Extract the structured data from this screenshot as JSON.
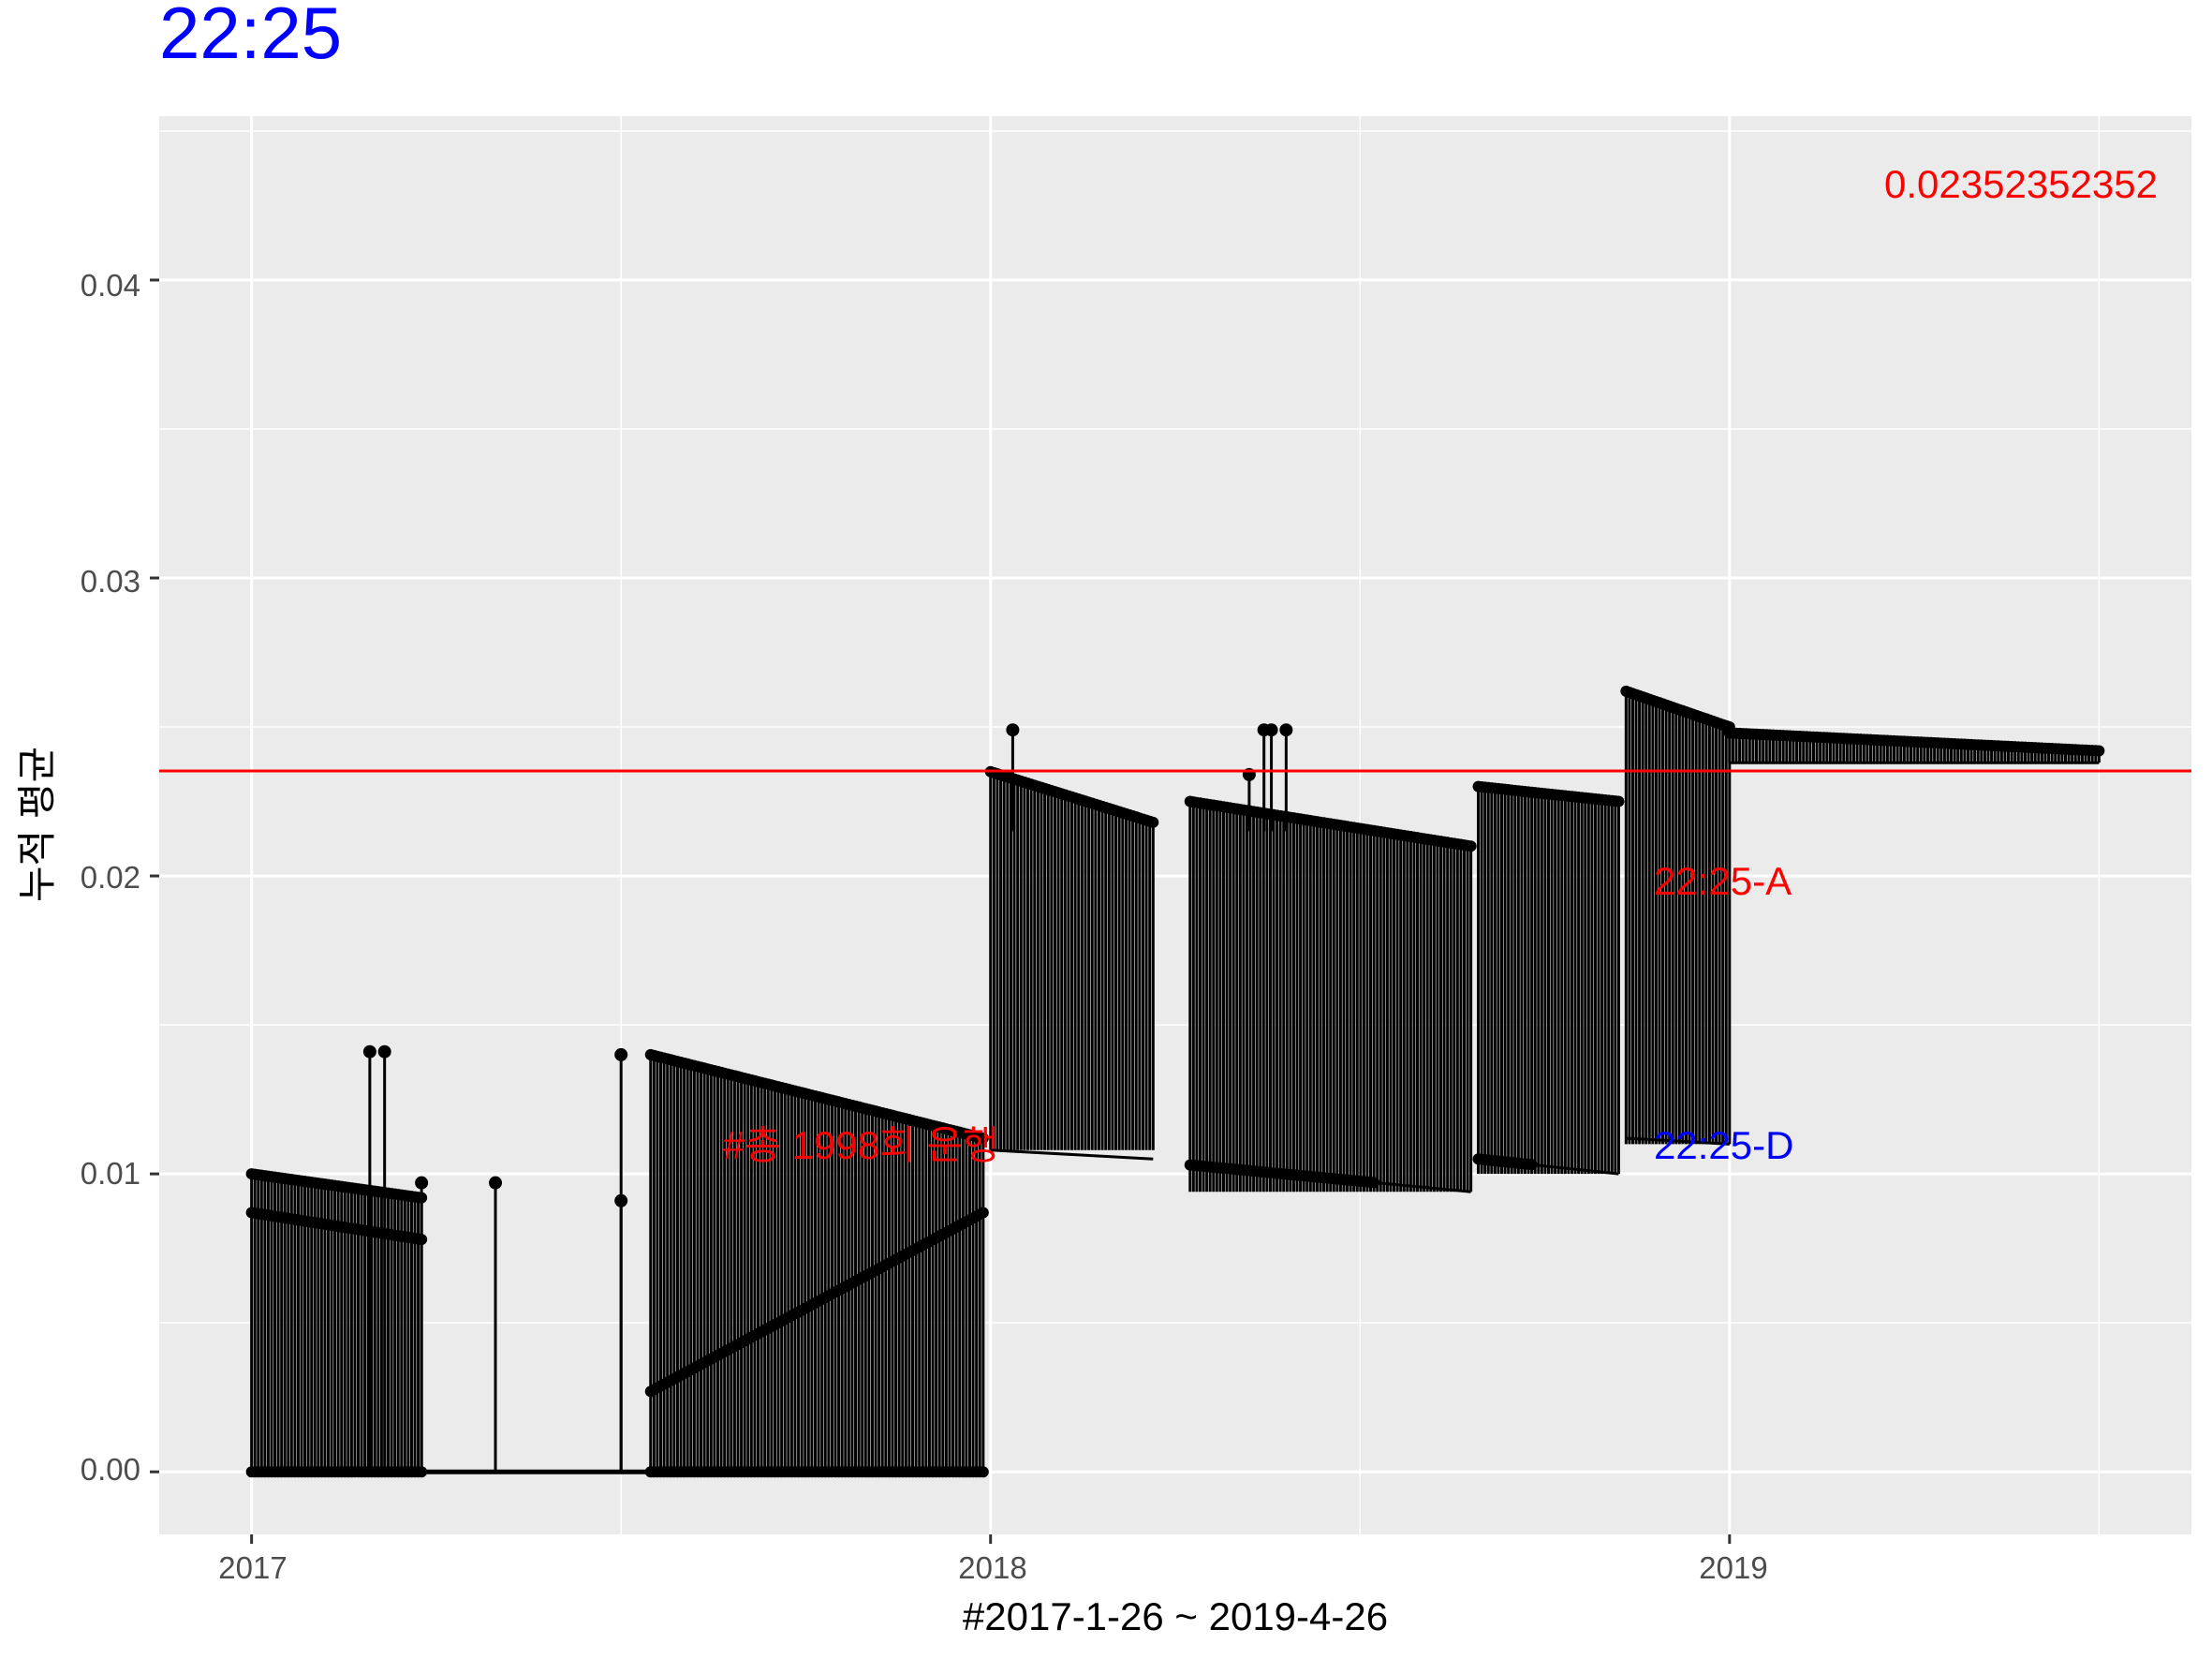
{
  "chart_data": {
    "type": "line",
    "title": "22:25",
    "xlabel": "#2017-1-26 ~ 2019-4-26",
    "ylabel": "누적 평균",
    "x_ticks": [
      "2017",
      "2018",
      "2019"
    ],
    "y_ticks": [
      "0.00",
      "0.01",
      "0.02",
      "0.03",
      "0.04"
    ],
    "xlim": [
      2016.875,
      2019.625
    ],
    "ylim": [
      -0.0021,
      0.0455
    ],
    "grid": true,
    "reference_line": {
      "y": 0.02352352352,
      "color": "#ff0000"
    },
    "annotations": {
      "mean_value": "0.02352352352",
      "count_label": "#총 1998회 운행",
      "label_a": "22:25-A",
      "label_d": "22:25-D"
    },
    "series": [
      {
        "name": "cumulative mean",
        "note": "approximate envelope of the vertical segment pattern, x in fractional years",
        "segments": [
          {
            "x": [
              2017.0,
              2017.23
            ],
            "y_top": [
              0.01,
              0.0092
            ],
            "y_low": [
              0.0087,
              0.0078
            ],
            "base": 0.0
          },
          {
            "x": [
              2017.54,
              2017.99
            ],
            "y_top": [
              0.014,
              0.0112
            ],
            "y_low": [
              0.0027,
              0.0087
            ],
            "base": 0.0
          },
          {
            "x": [
              2018.0,
              2018.22
            ],
            "y_top": [
              0.0235,
              0.0218
            ],
            "y_low": [
              0.0108,
              0.0105
            ],
            "base": 0.0108
          },
          {
            "x": [
              2018.27,
              2018.65
            ],
            "y_top": [
              0.0225,
              0.021
            ],
            "y_low": [
              0.0103,
              0.0094
            ],
            "base": 0.0094
          },
          {
            "x": [
              2018.66,
              2018.85
            ],
            "y_top": [
              0.023,
              0.0225
            ],
            "y_low": [
              0.0105,
              0.01
            ],
            "base": 0.01
          },
          {
            "x": [
              2018.86,
              2019.0
            ],
            "y_top": [
              0.0262,
              0.025
            ],
            "y_low": [
              0.0112,
              0.011
            ],
            "base": 0.011
          },
          {
            "x": [
              2019.0,
              2019.5
            ],
            "y_top": [
              0.0248,
              0.0242
            ],
            "y_low": [
              0.0238,
              0.0238
            ],
            "base": 0.0238
          }
        ],
        "isolated_spikes": [
          {
            "x": 2017.16,
            "y": 0.0141
          },
          {
            "x": 2017.18,
            "y": 0.0141
          },
          {
            "x": 2017.33,
            "y": 0.0097
          },
          {
            "x": 2017.5,
            "y": 0.014
          },
          {
            "x": 2017.5,
            "y": 0.0091
          },
          {
            "x": 2017.23,
            "y": 0.0097
          },
          {
            "x": 2018.03,
            "y": 0.0249
          },
          {
            "x": 2018.35,
            "y": 0.0234
          },
          {
            "x": 2018.37,
            "y": 0.0249
          },
          {
            "x": 2018.38,
            "y": 0.0249
          },
          {
            "x": 2018.4,
            "y": 0.0249
          }
        ]
      }
    ]
  }
}
